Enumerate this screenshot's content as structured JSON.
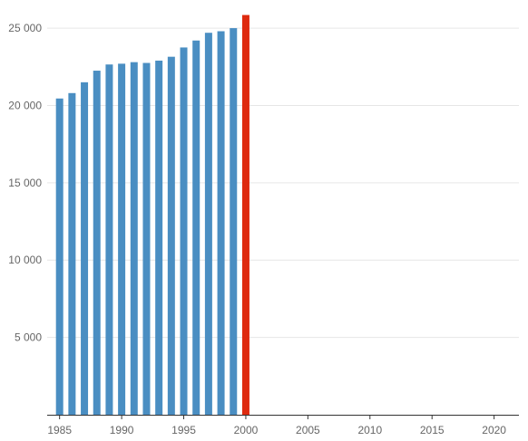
{
  "chart_data": {
    "type": "bar",
    "title": "",
    "xlabel": "",
    "ylabel": "",
    "x": [
      1985,
      1986,
      1987,
      1988,
      1989,
      1990,
      1991,
      1992,
      1993,
      1994,
      1995,
      1996,
      1997,
      1998,
      1999,
      2000
    ],
    "values": [
      20450,
      20800,
      21500,
      22250,
      22650,
      22700,
      22800,
      22750,
      22900,
      23150,
      23750,
      24200,
      24700,
      24800,
      25000,
      25850
    ],
    "highlight_x": 2000,
    "xlim": [
      1984,
      2022
    ],
    "ylim": [
      0,
      26000
    ],
    "x_ticks": [
      1985,
      1990,
      1995,
      2000,
      2005,
      2010,
      2015,
      2020
    ],
    "y_ticks": [
      5000,
      10000,
      15000,
      20000,
      25000
    ],
    "y_tick_labels": [
      "5 000",
      "10 000",
      "15 000",
      "20 000",
      "25 000"
    ],
    "grid": "horizontal",
    "legend": "none",
    "colors": {
      "bar": "#4a8ec2",
      "highlight": "#de2a0f",
      "grid": "#e6e6e6",
      "axis": "#333333",
      "text": "#666666"
    }
  }
}
